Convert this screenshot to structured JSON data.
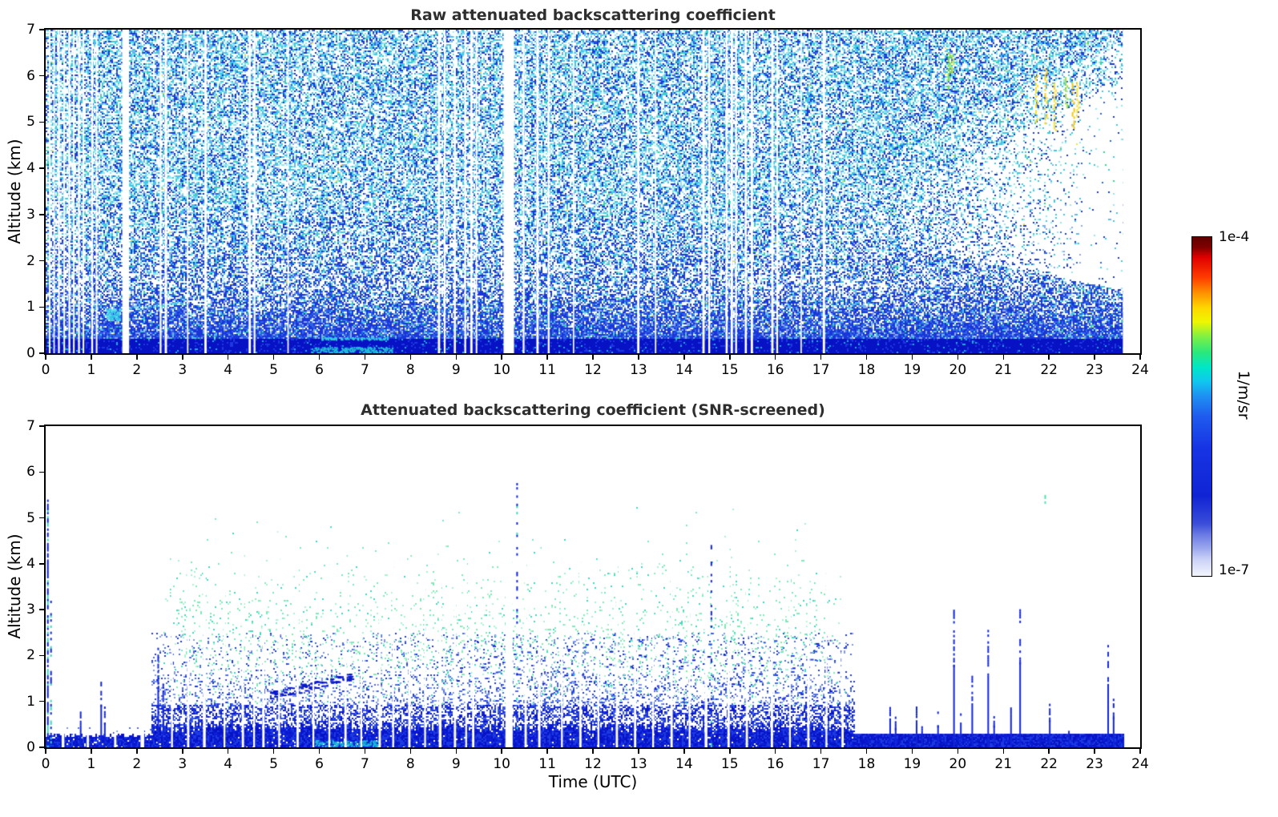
{
  "figure": {
    "xlabel": "Time (UTC)",
    "ylabel": "Altitude (km)",
    "colorbar": {
      "top_label": "1e-4",
      "bottom_label": "1e-7",
      "unit": "1/m/sr",
      "stops": [
        [
          0,
          "#600000"
        ],
        [
          0.03,
          "#7f0000"
        ],
        [
          0.06,
          "#e00000"
        ],
        [
          0.12,
          "#ff3c00"
        ],
        [
          0.165,
          "#ff9100"
        ],
        [
          0.21,
          "#ffd800"
        ],
        [
          0.25,
          "#eef600"
        ],
        [
          0.295,
          "#7df046"
        ],
        [
          0.34,
          "#2ae87c"
        ],
        [
          0.385,
          "#00e6c8"
        ],
        [
          0.425,
          "#0fc8ee"
        ],
        [
          0.47,
          "#1e8ff2"
        ],
        [
          0.53,
          "#1f5bee"
        ],
        [
          0.62,
          "#1734e4"
        ],
        [
          0.765,
          "#1024d4"
        ],
        [
          0.845,
          "#3a4cd8"
        ],
        [
          0.88,
          "#6d7ce4"
        ],
        [
          0.92,
          "#9da9ee"
        ],
        [
          0.95,
          "#c9d0f6"
        ],
        [
          1,
          "#f3f5fd"
        ]
      ]
    }
  },
  "chart_data": [
    {
      "type": "heatmap",
      "title": "Raw attenuated backscattering coefficient",
      "xlabel": "Time (UTC)",
      "ylabel": "Altitude (km)",
      "x_range": [
        0,
        24
      ],
      "y_range": [
        0,
        7
      ],
      "x_ticks": [
        0,
        1,
        2,
        3,
        4,
        5,
        6,
        7,
        8,
        9,
        10,
        11,
        12,
        13,
        14,
        15,
        16,
        17,
        18,
        19,
        20,
        21,
        22,
        23,
        24
      ],
      "y_ticks": [
        0,
        1,
        2,
        3,
        4,
        5,
        6,
        7
      ],
      "value_scale": "log",
      "value_range": [
        "1e-7",
        "1e-4"
      ],
      "colormap": "jet-like, white = no data",
      "features": {
        "t_end": 23.62,
        "surface_band_top": 0.32,
        "dense_layer_top": 1.4,
        "noise_density": 0.57,
        "clear_wedge": {
          "t0": 17.4,
          "alt_lo_range": [
            2.6,
            1.3
          ],
          "alt_hi_range": [
            2.8,
            6.1
          ]
        },
        "teal_smear": {
          "t": [
            5.8,
            7.6
          ],
          "alt": [
            0.02,
            0.14
          ]
        },
        "cyan_blob": {
          "t": [
            1.32,
            1.62
          ],
          "alt": [
            0.72,
            0.98
          ]
        },
        "streaks": [
          {
            "t": 19.78,
            "alt": [
              5.75,
              6.55
            ],
            "color": "#7ddf2e"
          },
          {
            "t": 19.86,
            "alt": [
              6.1,
              6.5
            ],
            "color": "#c8e832"
          },
          {
            "t": 21.7,
            "alt": [
              4.95,
              6.05
            ],
            "color": "#ffe22e"
          },
          {
            "t": 21.9,
            "alt": [
              5.0,
              6.2
            ],
            "color": "#ffd41e"
          },
          {
            "t": 22.1,
            "alt": [
              4.85,
              5.9
            ],
            "color": "#ffe22e"
          },
          {
            "t": 22.35,
            "alt": [
              5.3,
              6.0
            ],
            "color": "#9fe03a"
          },
          {
            "t": 22.5,
            "alt": [
              4.9,
              5.85
            ],
            "color": "#f6c915"
          },
          {
            "t": 22.6,
            "alt": [
              5.15,
              6.0
            ],
            "color": "#ffe22e"
          }
        ],
        "gap_stripes": [
          [
            0.07,
            0.035
          ],
          [
            0.17,
            0.03
          ],
          [
            0.27,
            0.04
          ],
          [
            0.39,
            0.035
          ],
          [
            0.5,
            0.04
          ],
          [
            0.6,
            0.035
          ],
          [
            0.71,
            0.04
          ],
          [
            0.81,
            0.035
          ],
          [
            1.0,
            0.04
          ],
          [
            1.1,
            0.035
          ],
          [
            1.68,
            0.15
          ],
          [
            2.5,
            0.04
          ],
          [
            2.61,
            0.05
          ],
          [
            3.1,
            0.03
          ],
          [
            3.48,
            0.05
          ],
          [
            4.45,
            0.05
          ],
          [
            4.56,
            0.04
          ],
          [
            5.3,
            0.03
          ],
          [
            8.6,
            0.05
          ],
          [
            8.73,
            0.04
          ],
          [
            8.95,
            0.045
          ],
          [
            9.18,
            0.04
          ],
          [
            9.31,
            0.05
          ],
          [
            9.43,
            0.035
          ],
          [
            10.04,
            0.23
          ],
          [
            10.46,
            0.04
          ],
          [
            10.76,
            0.05
          ],
          [
            11.01,
            0.04
          ],
          [
            11.56,
            0.03
          ],
          [
            12.97,
            0.05
          ],
          [
            13.36,
            0.03
          ],
          [
            14.4,
            0.05
          ],
          [
            14.53,
            0.04
          ],
          [
            14.91,
            0.045
          ],
          [
            15.02,
            0.05
          ],
          [
            15.12,
            0.04
          ],
          [
            15.33,
            0.045
          ],
          [
            15.46,
            0.05
          ],
          [
            15.91,
            0.05
          ],
          [
            16.02,
            0.04
          ],
          [
            16.55,
            0.03
          ],
          [
            17.04,
            0.05
          ]
        ]
      }
    },
    {
      "type": "heatmap",
      "title": "Attenuated backscattering coefficient (SNR-screened)",
      "xlabel": "Time (UTC)",
      "ylabel": "Altitude (km)",
      "x_range": [
        0,
        24
      ],
      "y_range": [
        0,
        7
      ],
      "x_ticks": [
        0,
        1,
        2,
        3,
        4,
        5,
        6,
        7,
        8,
        9,
        10,
        11,
        12,
        13,
        14,
        15,
        16,
        17,
        18,
        19,
        20,
        21,
        22,
        23,
        24
      ],
      "y_ticks": [
        0,
        1,
        2,
        3,
        4,
        5,
        6,
        7
      ],
      "value_scale": "log",
      "value_range": [
        "1e-7",
        "1e-4"
      ],
      "colormap": "jet-like, white = screened out",
      "features": {
        "t_end": 23.65,
        "band_segments": [
          {
            "t": [
              0,
              2.3
            ],
            "band_top": 0.28
          },
          {
            "t": [
              2.3,
              17.72
            ],
            "band_top": 0.45
          },
          {
            "t": [
              17.72,
              23.65
            ],
            "band_top": 0.33
          }
        ],
        "green_haze": {
          "t": [
            2.45,
            17.6
          ],
          "alt": [
            0.9,
            5.3
          ],
          "peak_alt": 2.3,
          "sigma": 1.3,
          "density": 0.085
        },
        "dark_dash_cluster": {
          "t": [
            4.9,
            6.7
          ],
          "alt": [
            1.14,
            1.55
          ],
          "count": 75
        },
        "scatter_dashes": {
          "t": [
            8.8,
            17.4
          ],
          "alt": [
            0.9,
            2.4
          ],
          "count": 150
        },
        "teal_smear": {
          "t": [
            5.9,
            7.3
          ],
          "alt": [
            0.03,
            0.16
          ]
        },
        "green_dot": {
          "t": 21.9,
          "alt": 5.5
        },
        "sparse_columns": [
          [
            0.03,
            5.4,
            0.8
          ],
          [
            0.1,
            3.2,
            0.5
          ],
          [
            10.32,
            5.9,
            0.3
          ],
          [
            14.58,
            4.6,
            0.25
          ]
        ],
        "spikes": [
          [
            0.75,
            0.8
          ],
          [
            1.2,
            1.55
          ],
          [
            1.28,
            0.9
          ],
          [
            2.45,
            2.2
          ],
          [
            2.56,
            1.4
          ],
          [
            18.5,
            1.05
          ],
          [
            18.62,
            0.7
          ],
          [
            19.08,
            0.9
          ],
          [
            19.2,
            0.6
          ],
          [
            19.55,
            0.8
          ],
          [
            19.9,
            3.0
          ],
          [
            20.05,
            0.9
          ],
          [
            20.3,
            1.6
          ],
          [
            20.65,
            2.6
          ],
          [
            20.78,
            0.8
          ],
          [
            21.15,
            1.2
          ],
          [
            21.35,
            3.1
          ],
          [
            22.0,
            1.0
          ],
          [
            22.42,
            0.6
          ],
          [
            23.28,
            2.3
          ],
          [
            23.4,
            1.1
          ]
        ],
        "gap_stripes": [
          [
            0.35,
            0.06
          ],
          [
            0.9,
            0.05
          ],
          [
            1.5,
            0.05
          ],
          [
            2.08,
            0.08
          ],
          [
            2.75,
            0.04
          ],
          [
            3.1,
            0.05
          ],
          [
            3.45,
            0.06
          ],
          [
            3.9,
            0.04
          ],
          [
            4.3,
            0.05
          ],
          [
            4.55,
            0.04
          ],
          [
            4.75,
            0.05
          ],
          [
            5.1,
            0.04
          ],
          [
            5.5,
            0.05
          ],
          [
            5.85,
            0.04
          ],
          [
            6.2,
            0.04
          ],
          [
            6.55,
            0.05
          ],
          [
            6.9,
            0.04
          ],
          [
            7.3,
            0.05
          ],
          [
            7.6,
            0.04
          ],
          [
            7.95,
            0.05
          ],
          [
            8.3,
            0.04
          ],
          [
            8.62,
            0.06
          ],
          [
            8.95,
            0.05
          ],
          [
            9.2,
            0.04
          ],
          [
            9.35,
            0.05
          ],
          [
            10.08,
            0.16
          ],
          [
            10.5,
            0.05
          ],
          [
            10.8,
            0.05
          ],
          [
            11.3,
            0.04
          ],
          [
            11.7,
            0.05
          ],
          [
            12.1,
            0.04
          ],
          [
            12.5,
            0.05
          ],
          [
            12.9,
            0.05
          ],
          [
            13.3,
            0.04
          ],
          [
            13.7,
            0.05
          ],
          [
            14.1,
            0.04
          ],
          [
            14.45,
            0.06
          ],
          [
            14.95,
            0.05
          ],
          [
            15.35,
            0.05
          ],
          [
            15.9,
            0.05
          ],
          [
            16.3,
            0.04
          ],
          [
            16.7,
            0.05
          ],
          [
            17.1,
            0.04
          ],
          [
            17.45,
            0.05
          ]
        ]
      }
    }
  ]
}
